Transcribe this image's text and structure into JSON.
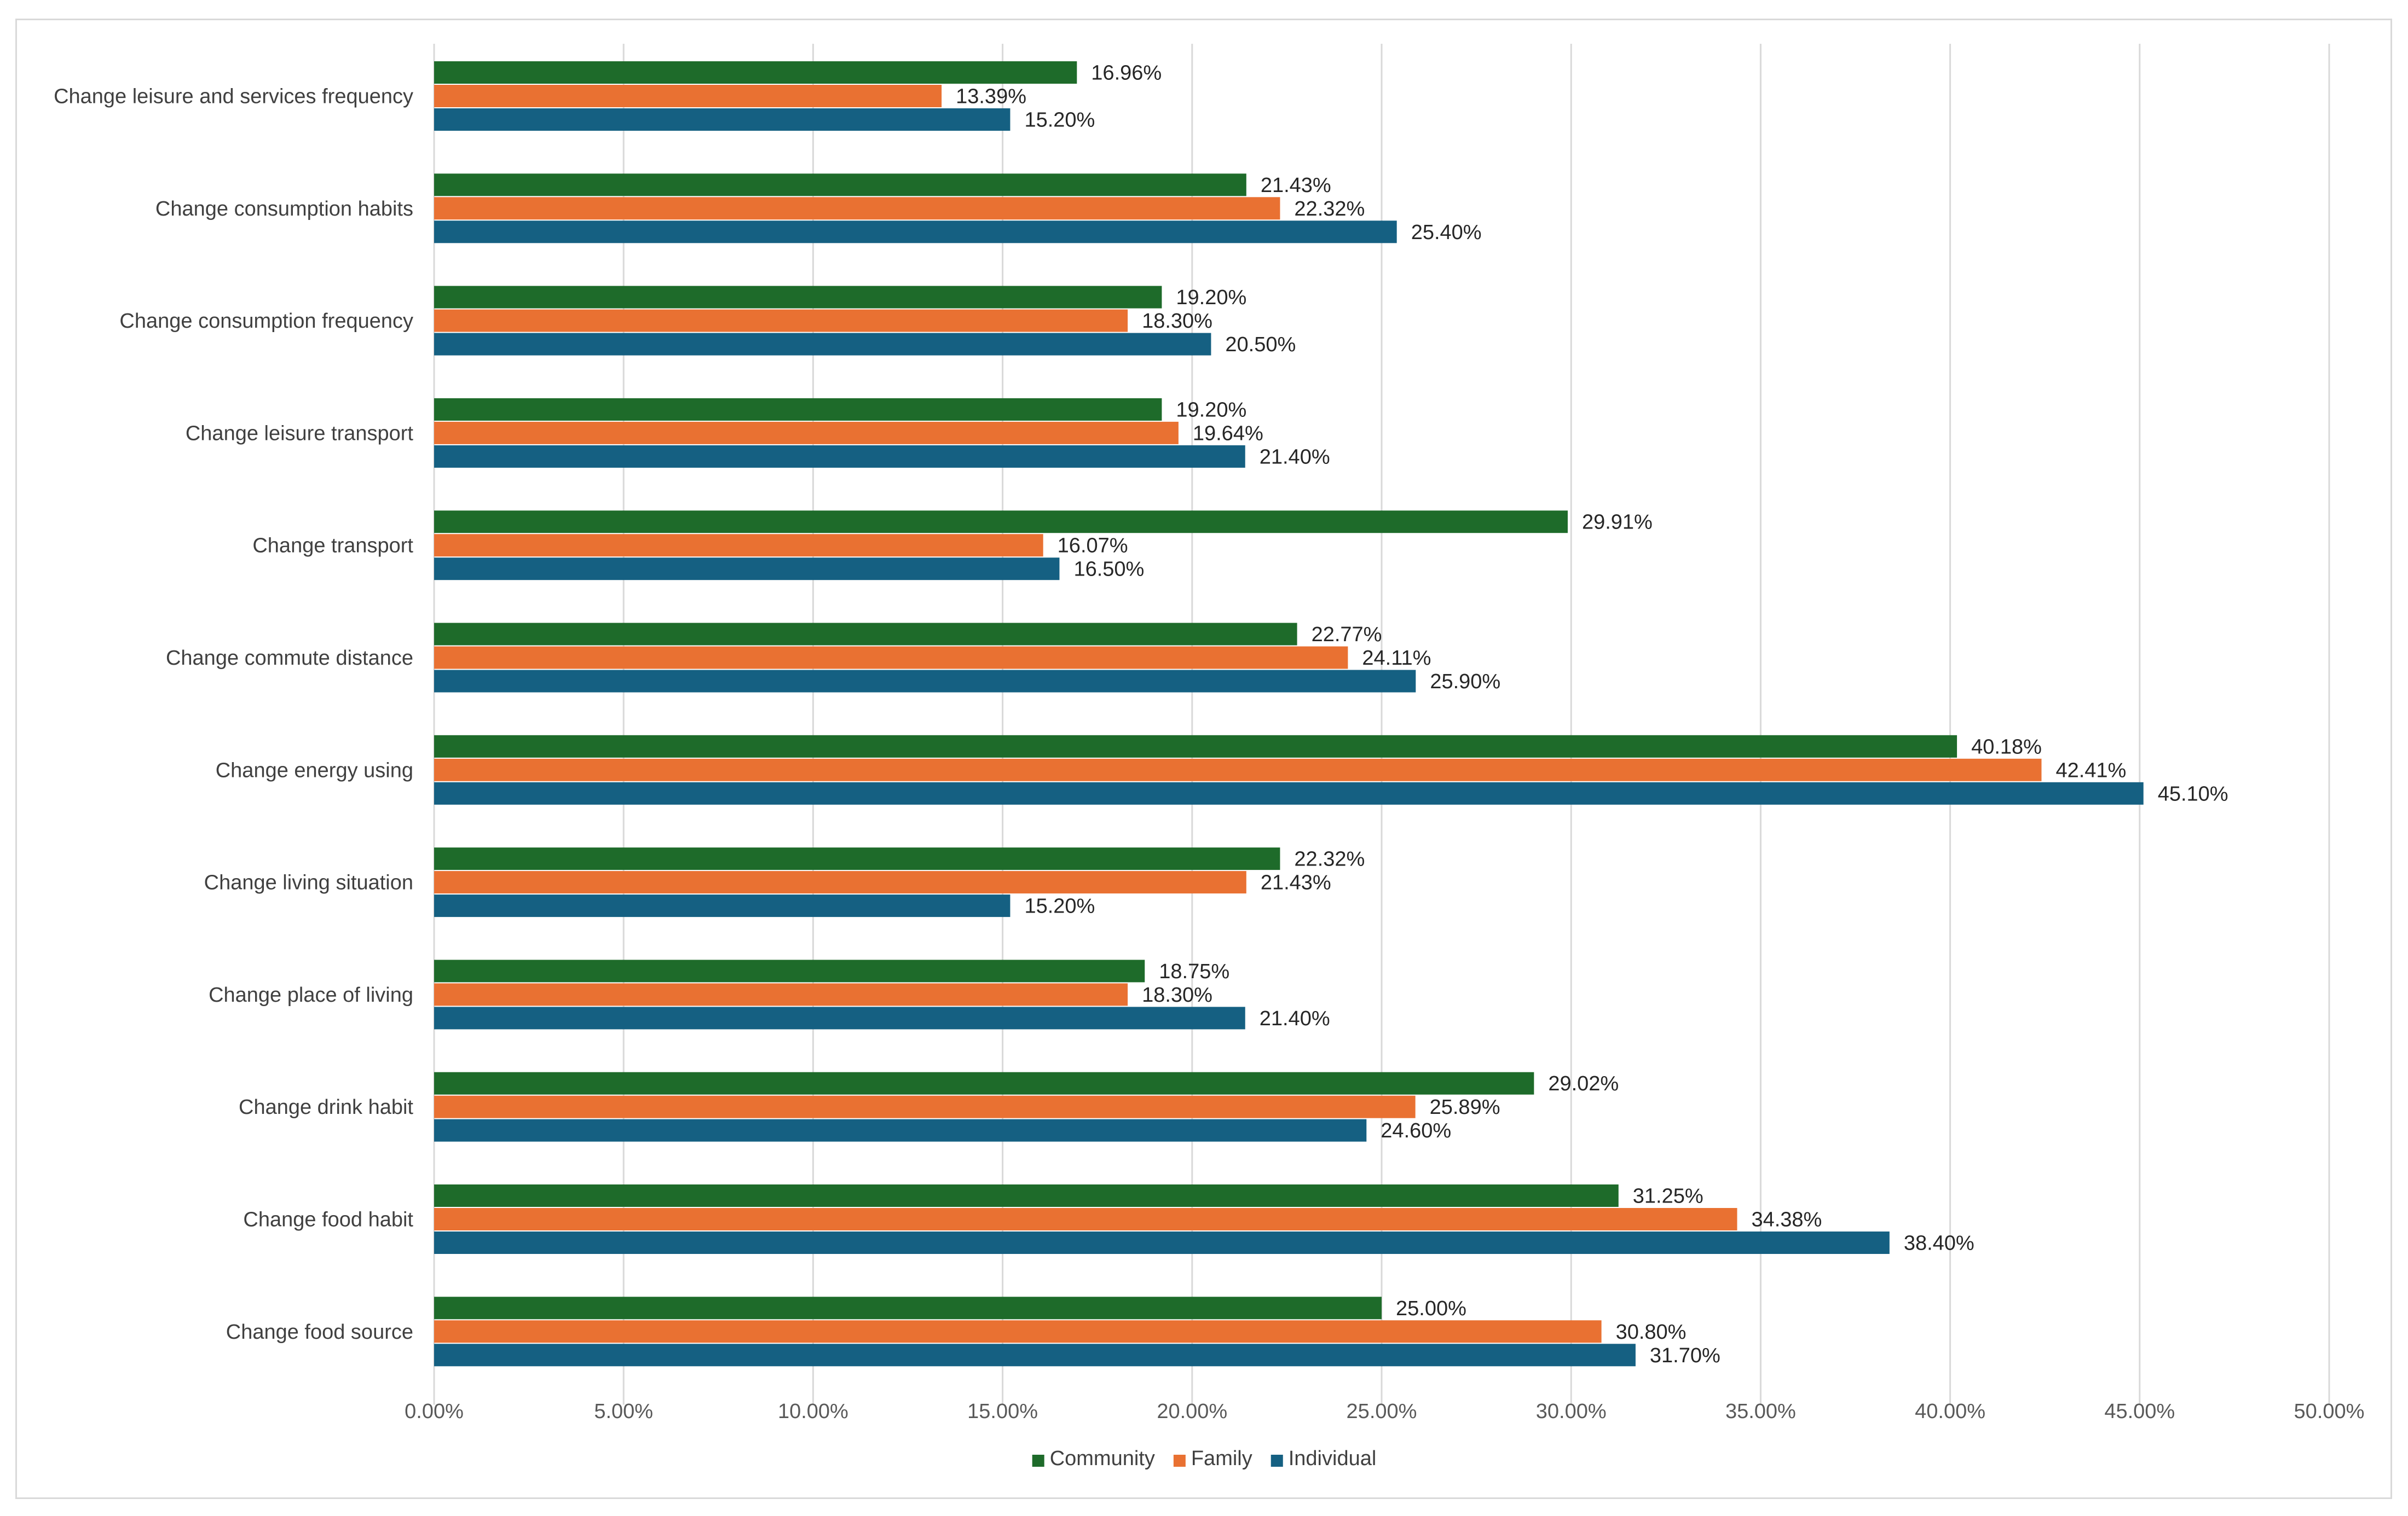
{
  "chart_data": {
    "type": "bar",
    "orientation": "horizontal",
    "categories": [
      "Change leisure and services frequency",
      "Change consumption habits",
      "Change consumption frequency",
      "Change leisure transport",
      "Change transport",
      "Change commute distance",
      "Change energy using",
      "Change living situation",
      "Change place of living",
      "Change drink habit",
      "Change food habit",
      "Change food source"
    ],
    "series": [
      {
        "name": "Community",
        "color": "#1e6b2a",
        "values": [
          16.96,
          21.43,
          19.2,
          19.2,
          29.91,
          22.77,
          40.18,
          22.32,
          18.75,
          29.02,
          31.25,
          25.0
        ],
        "labels": [
          "16.96%",
          "21.43%",
          "19.20%",
          "19.20%",
          "29.91%",
          "22.77%",
          "40.18%",
          "22.32%",
          "18.75%",
          "29.02%",
          "31.25%",
          "25.00%"
        ]
      },
      {
        "name": "Family",
        "color": "#e97132",
        "values": [
          13.39,
          22.32,
          18.3,
          19.64,
          16.07,
          24.11,
          42.41,
          21.43,
          18.3,
          25.89,
          34.38,
          30.8
        ],
        "labels": [
          "13.39%",
          "22.32%",
          "18.30%",
          "19.64%",
          "16.07%",
          "24.11%",
          "42.41%",
          "21.43%",
          "18.30%",
          "25.89%",
          "34.38%",
          "30.80%"
        ]
      },
      {
        "name": "Individual",
        "color": "#156082",
        "values": [
          15.2,
          25.4,
          20.5,
          21.4,
          16.5,
          25.9,
          45.1,
          15.2,
          21.4,
          24.6,
          38.4,
          31.7
        ],
        "labels": [
          "15.20%",
          "25.40%",
          "20.50%",
          "21.40%",
          "16.50%",
          "25.90%",
          "45.10%",
          "15.20%",
          "21.40%",
          "24.60%",
          "38.40%",
          "31.70%"
        ]
      }
    ],
    "xlim": [
      0,
      50
    ],
    "x_ticks": [
      0,
      5,
      10,
      15,
      20,
      25,
      30,
      35,
      40,
      45,
      50
    ],
    "x_tick_labels": [
      "0.00%",
      "5.00%",
      "10.00%",
      "15.00%",
      "20.00%",
      "25.00%",
      "30.00%",
      "35.00%",
      "40.00%",
      "45.00%",
      "50.00%"
    ],
    "title": "",
    "xlabel": "",
    "ylabel": "",
    "grid": "vertical",
    "legend_position": "bottom-center",
    "legend_order": [
      "Community",
      "Family",
      "Individual"
    ]
  }
}
